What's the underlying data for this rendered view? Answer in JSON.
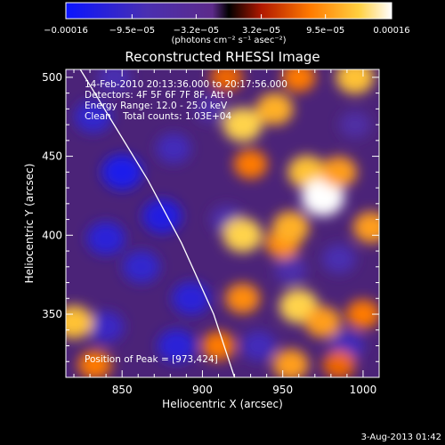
{
  "colorbar": {
    "tick_labels": [
      "−0.00016",
      "−9.5e−05",
      "−3.2e−05",
      "3.2e−05",
      "9.5e−05",
      "0.00016"
    ],
    "tick_values": [
      -0.00016,
      -9.5e-05,
      -3.2e-05,
      3.2e-05,
      9.5e-05,
      0.00016
    ],
    "range": [
      -0.00016,
      0.00016
    ],
    "unit_label": "(photons cm⁻² s⁻¹ asec⁻²)",
    "colors": [
      "#0a14ff",
      "#4a2fb0",
      "#5c2a8a",
      "#000000",
      "#b01800",
      "#ff7a00",
      "#ffd040",
      "#ffffff"
    ]
  },
  "chart_data": {
    "type": "heatmap",
    "title": "Reconstructed RHESSI Image",
    "xlabel": "Heliocentric X (arcsec)",
    "ylabel": "Heliocentric Y (arcsec)",
    "xlim": [
      815,
      1010
    ],
    "ylim": [
      310,
      505
    ],
    "x_ticks": [
      850,
      900,
      950,
      1000
    ],
    "y_ticks": [
      350,
      400,
      450,
      500
    ],
    "annotations": [
      "14-Feb-2010 20:13:36.000 to 20:17:56.000",
      "Detectors: 4F 5F 6F 7F 8F, Att 0",
      "Energy Range: 12.0 - 25.0 keV",
      "Clean    Total counts: 1.03E+04"
    ],
    "peak_label": "Position of Peak = [973,424]",
    "limb_curve": {
      "x": [
        824,
        845,
        866,
        887,
        907,
        920
      ],
      "y": [
        505,
        470,
        435,
        395,
        350,
        310
      ]
    },
    "blobs": [
      {
        "x": 850,
        "y": 440,
        "v": -0.00014
      },
      {
        "x": 875,
        "y": 412,
        "v": -0.00013
      },
      {
        "x": 840,
        "y": 398,
        "v": -0.00012
      },
      {
        "x": 862,
        "y": 380,
        "v": -0.00011
      },
      {
        "x": 893,
        "y": 360,
        "v": -0.00012
      },
      {
        "x": 884,
        "y": 330,
        "v": -0.00012
      },
      {
        "x": 840,
        "y": 342,
        "v": -0.0001
      },
      {
        "x": 832,
        "y": 475,
        "v": -0.00011
      },
      {
        "x": 882,
        "y": 455,
        "v": -9e-05
      },
      {
        "x": 845,
        "y": 500,
        "v": -8e-05
      },
      {
        "x": 915,
        "y": 410,
        "v": -7e-05
      },
      {
        "x": 905,
        "y": 480,
        "v": -6e-05
      },
      {
        "x": 935,
        "y": 330,
        "v": -9e-05
      },
      {
        "x": 990,
        "y": 330,
        "v": -9e-05
      },
      {
        "x": 985,
        "y": 385,
        "v": -8e-05
      },
      {
        "x": 955,
        "y": 378,
        "v": -7e-05
      },
      {
        "x": 995,
        "y": 470,
        "v": -6e-05
      },
      {
        "x": 820,
        "y": 345,
        "v": 0.00012
      },
      {
        "x": 833,
        "y": 318,
        "v": 8e-05
      },
      {
        "x": 925,
        "y": 470,
        "v": 0.00013
      },
      {
        "x": 945,
        "y": 480,
        "v": 0.00011
      },
      {
        "x": 930,
        "y": 445,
        "v": 8e-05
      },
      {
        "x": 965,
        "y": 440,
        "v": 0.00012
      },
      {
        "x": 975,
        "y": 424,
        "v": 0.00016
      },
      {
        "x": 985,
        "y": 440,
        "v": 0.0001
      },
      {
        "x": 995,
        "y": 500,
        "v": 0.00012
      },
      {
        "x": 960,
        "y": 500,
        "v": 8e-05
      },
      {
        "x": 915,
        "y": 500,
        "v": 7e-05
      },
      {
        "x": 925,
        "y": 400,
        "v": 0.00013
      },
      {
        "x": 950,
        "y": 395,
        "v": 9e-05
      },
      {
        "x": 955,
        "y": 405,
        "v": 0.00011
      },
      {
        "x": 1005,
        "y": 405,
        "v": 0.0001
      },
      {
        "x": 925,
        "y": 360,
        "v": 9e-05
      },
      {
        "x": 960,
        "y": 355,
        "v": 0.00013
      },
      {
        "x": 975,
        "y": 345,
        "v": 0.0001
      },
      {
        "x": 1000,
        "y": 350,
        "v": 8e-05
      },
      {
        "x": 910,
        "y": 330,
        "v": 8e-05
      },
      {
        "x": 955,
        "y": 318,
        "v": 0.0001
      },
      {
        "x": 985,
        "y": 318,
        "v": 7e-05
      }
    ]
  },
  "footer": {
    "timestamp": "3-Aug-2013 01:42"
  }
}
